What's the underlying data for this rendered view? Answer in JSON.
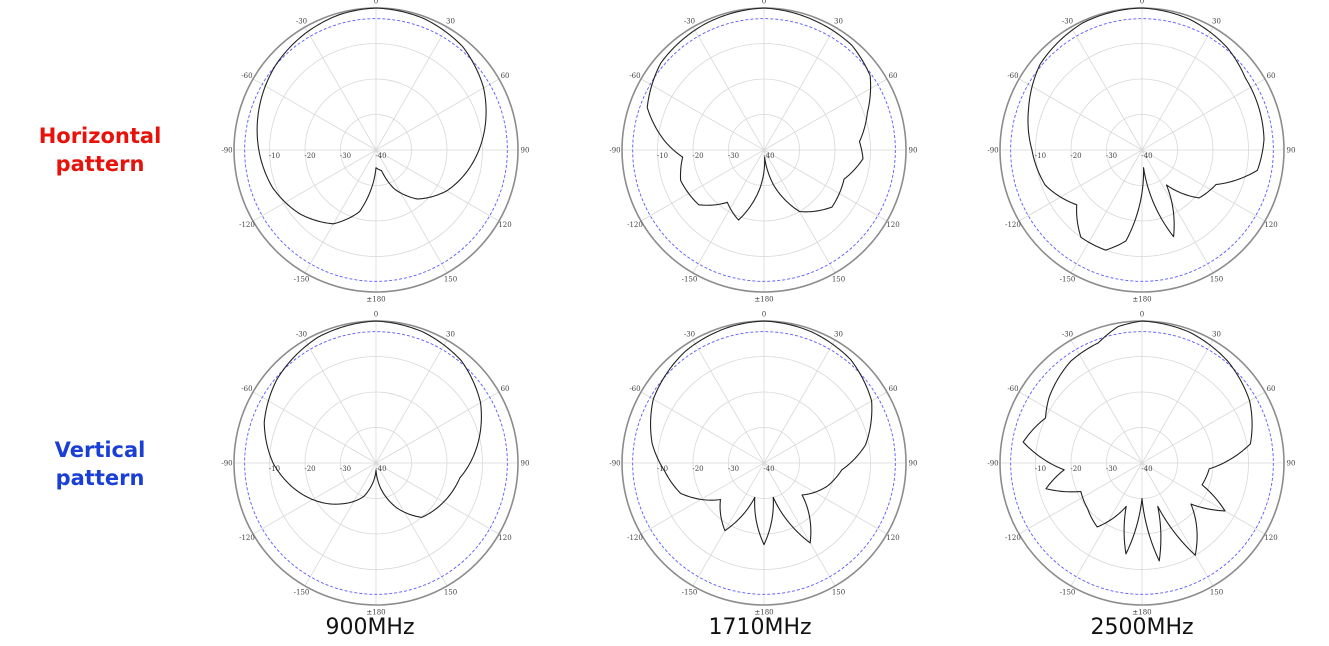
{
  "row_labels": {
    "horizontal": [
      "Horizontal",
      "pattern"
    ],
    "vertical": [
      "Vertical",
      "pattern"
    ]
  },
  "column_labels": [
    "900MHz",
    "1710MHz",
    "2500MHz"
  ],
  "colors": {
    "horizontal_label": "#e8120c",
    "vertical_label": "#1a3fd6",
    "reference_circle": "#5a5aff",
    "trace": "#222222",
    "outer_ring": "#8c8c8c",
    "grid": "#d8d8d8"
  },
  "chart_data": [
    {
      "type": "polar",
      "plane": "horizontal",
      "frequency": "900MHz",
      "angle_ticks": [
        "0",
        "30",
        "60",
        "90",
        "120",
        "150",
        "±180",
        "-150",
        "-120",
        "-90",
        "-60",
        "-30"
      ],
      "radial_ticks": [
        "-10",
        "-20",
        "-30",
        "-40"
      ],
      "r_range_db": [
        -40,
        0
      ],
      "reference_db": -3,
      "points": [
        [
          0,
          0
        ],
        [
          20,
          -0.6
        ],
        [
          40,
          -2
        ],
        [
          60,
          -5
        ],
        [
          80,
          -9
        ],
        [
          100,
          -13
        ],
        [
          120,
          -17
        ],
        [
          140,
          -22
        ],
        [
          155,
          -28
        ],
        [
          165,
          -34
        ],
        [
          180,
          -35
        ],
        [
          195,
          -22
        ],
        [
          210,
          -16
        ],
        [
          230,
          -12
        ],
        [
          250,
          -9
        ],
        [
          270,
          -7
        ],
        [
          290,
          -5
        ],
        [
          310,
          -3
        ],
        [
          330,
          -1.5
        ],
        [
          345,
          -0.5
        ],
        [
          360,
          0
        ]
      ]
    },
    {
      "type": "polar",
      "plane": "horizontal",
      "frequency": "1710MHz",
      "angle_ticks": [
        "0",
        "30",
        "60",
        "90",
        "120",
        "150",
        "±180",
        "-150",
        "-120",
        "-90",
        "-60",
        "-30"
      ],
      "radial_ticks": [
        "-10",
        "-20",
        "-30",
        "-40"
      ],
      "r_range_db": [
        -40,
        0
      ],
      "reference_db": -3,
      "points": [
        [
          0,
          0
        ],
        [
          20,
          -0.8
        ],
        [
          40,
          -1.5
        ],
        [
          55,
          -3.5
        ],
        [
          70,
          -9
        ],
        [
          85,
          -13
        ],
        [
          95,
          -12
        ],
        [
          110,
          -16
        ],
        [
          130,
          -15
        ],
        [
          150,
          -20
        ],
        [
          165,
          -30
        ],
        [
          175,
          -38
        ],
        [
          185,
          -30
        ],
        [
          200,
          -19
        ],
        [
          215,
          -22
        ],
        [
          230,
          -16
        ],
        [
          250,
          -15
        ],
        [
          265,
          -17
        ],
        [
          275,
          -12
        ],
        [
          290,
          -5
        ],
        [
          310,
          -2
        ],
        [
          335,
          -0.8
        ],
        [
          360,
          0
        ]
      ]
    },
    {
      "type": "polar",
      "plane": "horizontal",
      "frequency": "2500MHz",
      "angle_ticks": [
        "0",
        "30",
        "60",
        "90",
        "120",
        "150",
        "±180",
        "-150",
        "-120",
        "-90",
        "-60",
        "-30"
      ],
      "radial_ticks": [
        "-10",
        "-20",
        "-30",
        "-40"
      ],
      "r_range_db": [
        -40,
        0
      ],
      "reference_db": -3,
      "points": [
        [
          0,
          0
        ],
        [
          20,
          -0.8
        ],
        [
          40,
          -2.5
        ],
        [
          55,
          -4.5
        ],
        [
          70,
          -5
        ],
        [
          85,
          -5.5
        ],
        [
          100,
          -7
        ],
        [
          115,
          -17
        ],
        [
          130,
          -19
        ],
        [
          145,
          -28
        ],
        [
          160,
          -14
        ],
        [
          175,
          -35
        ],
        [
          190,
          -14
        ],
        [
          200,
          -10
        ],
        [
          215,
          -10
        ],
        [
          230,
          -16
        ],
        [
          250,
          -11
        ],
        [
          270,
          -9
        ],
        [
          290,
          -6
        ],
        [
          310,
          -2.5
        ],
        [
          335,
          -0.5
        ],
        [
          360,
          0
        ]
      ]
    },
    {
      "type": "polar",
      "plane": "vertical",
      "frequency": "900MHz",
      "angle_ticks": [
        "0",
        "30",
        "60",
        "90",
        "120",
        "150",
        "±180",
        "-150",
        "-120",
        "-90",
        "-60",
        "-30"
      ],
      "radial_ticks": [
        "-10",
        "-20",
        "-30",
        "-40"
      ],
      "r_range_db": [
        -40,
        0
      ],
      "reference_db": -3,
      "points": [
        [
          0,
          0
        ],
        [
          20,
          -0.8
        ],
        [
          40,
          -2.5
        ],
        [
          60,
          -6
        ],
        [
          80,
          -11
        ],
        [
          100,
          -16
        ],
        [
          120,
          -18
        ],
        [
          140,
          -20
        ],
        [
          155,
          -26
        ],
        [
          170,
          -33
        ],
        [
          180,
          -38
        ],
        [
          200,
          -30
        ],
        [
          220,
          -25
        ],
        [
          245,
          -18
        ],
        [
          270,
          -11
        ],
        [
          290,
          -6.5
        ],
        [
          310,
          -3.5
        ],
        [
          335,
          -1
        ],
        [
          360,
          0
        ]
      ]
    },
    {
      "type": "polar",
      "plane": "vertical",
      "frequency": "1710MHz",
      "angle_ticks": [
        "0",
        "30",
        "60",
        "90",
        "120",
        "150",
        "±180",
        "-150",
        "-120",
        "-90",
        "-60",
        "-30"
      ],
      "radial_ticks": [
        "-10",
        "-20",
        "-30",
        "-40"
      ],
      "r_range_db": [
        -40,
        0
      ],
      "reference_db": -3,
      "points": [
        [
          0,
          0
        ],
        [
          20,
          -0.7
        ],
        [
          40,
          -2
        ],
        [
          60,
          -5
        ],
        [
          80,
          -11
        ],
        [
          95,
          -18
        ],
        [
          110,
          -21
        ],
        [
          130,
          -26
        ],
        [
          150,
          -14
        ],
        [
          165,
          -30
        ],
        [
          180,
          -17
        ],
        [
          195,
          -30
        ],
        [
          210,
          -18
        ],
        [
          230,
          -24
        ],
        [
          250,
          -15
        ],
        [
          265,
          -12
        ],
        [
          280,
          -8
        ],
        [
          300,
          -4
        ],
        [
          325,
          -1.5
        ],
        [
          345,
          -0.5
        ],
        [
          360,
          0
        ]
      ]
    },
    {
      "type": "polar",
      "plane": "vertical",
      "frequency": "2500MHz",
      "angle_ticks": [
        "0",
        "30",
        "60",
        "90",
        "120",
        "150",
        "±180",
        "-150",
        "-120",
        "-90",
        "-60",
        "-30"
      ],
      "radial_ticks": [
        "-10",
        "-20",
        "-30",
        "-40"
      ],
      "r_range_db": [
        -40,
        0
      ],
      "reference_db": -3,
      "points": [
        [
          0,
          0
        ],
        [
          20,
          -0.8
        ],
        [
          40,
          -2.5
        ],
        [
          60,
          -5
        ],
        [
          80,
          -9
        ],
        [
          95,
          -21
        ],
        [
          110,
          -22
        ],
        [
          120,
          -13
        ],
        [
          130,
          -22
        ],
        [
          150,
          -10
        ],
        [
          160,
          -27
        ],
        [
          170,
          -12
        ],
        [
          180,
          -30
        ],
        [
          190,
          -14
        ],
        [
          200,
          -27
        ],
        [
          215,
          -18
        ],
        [
          230,
          -20
        ],
        [
          245,
          -21
        ],
        [
          255,
          -12
        ],
        [
          265,
          -18
        ],
        [
          280,
          -6
        ],
        [
          295,
          -10
        ],
        [
          305,
          -8
        ],
        [
          325,
          -5
        ],
        [
          340,
          -4
        ],
        [
          350,
          -1
        ],
        [
          360,
          0
        ]
      ]
    }
  ]
}
